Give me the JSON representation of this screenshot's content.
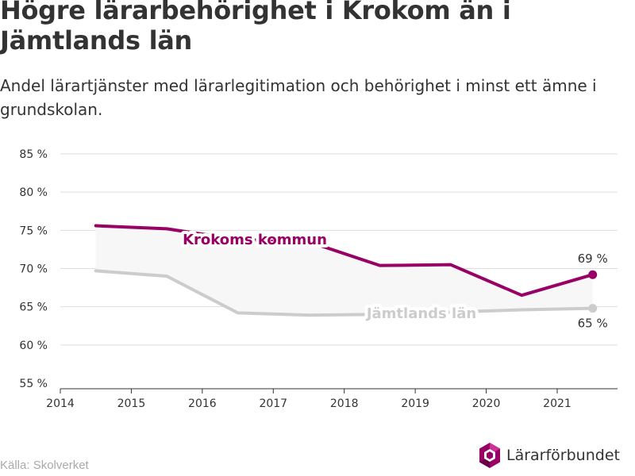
{
  "title": "Högre lärarbehörighet i Krokom än i Jämtlands län",
  "subtitle": "Andel lärartjänster med lärarlegitimation och behörighet i minst ett ämne i grundskolan.",
  "source": "Källa: Skolverket",
  "logo_text": "Lärarförbundet",
  "colors": {
    "krokom": "#990066",
    "lan": "#cccccc",
    "fill": "#f7f7f7",
    "grid": "#dddddd",
    "axis": "#333333"
  },
  "chart_data": {
    "type": "line",
    "ylim": [
      55,
      85
    ],
    "xlim": [
      2014,
      2021.85
    ],
    "x_ticks": [
      2014,
      2015,
      2016,
      2017,
      2018,
      2019,
      2020,
      2021
    ],
    "y_ticks": [
      55,
      60,
      65,
      70,
      75,
      80,
      85
    ],
    "y_tick_labels": [
      "55 %",
      "60 %",
      "65 %",
      "70 %",
      "75 %",
      "80 %",
      "85 %"
    ],
    "x": [
      2014.5,
      2015.5,
      2016.5,
      2017.5,
      2018.5,
      2019.5,
      2020.5,
      2021.5
    ],
    "series": [
      {
        "name": "Krokoms kommun",
        "values": [
          75.6,
          75.2,
          73.8,
          73.5,
          70.4,
          70.5,
          66.5,
          69.2
        ],
        "end_label": "69 %",
        "color": "#990066"
      },
      {
        "name": "Jämtlands län",
        "values": [
          69.7,
          69.0,
          64.2,
          63.9,
          64.0,
          64.3,
          64.6,
          64.8
        ],
        "end_label": "65 %",
        "color": "#cccccc"
      }
    ],
    "grid": true
  }
}
